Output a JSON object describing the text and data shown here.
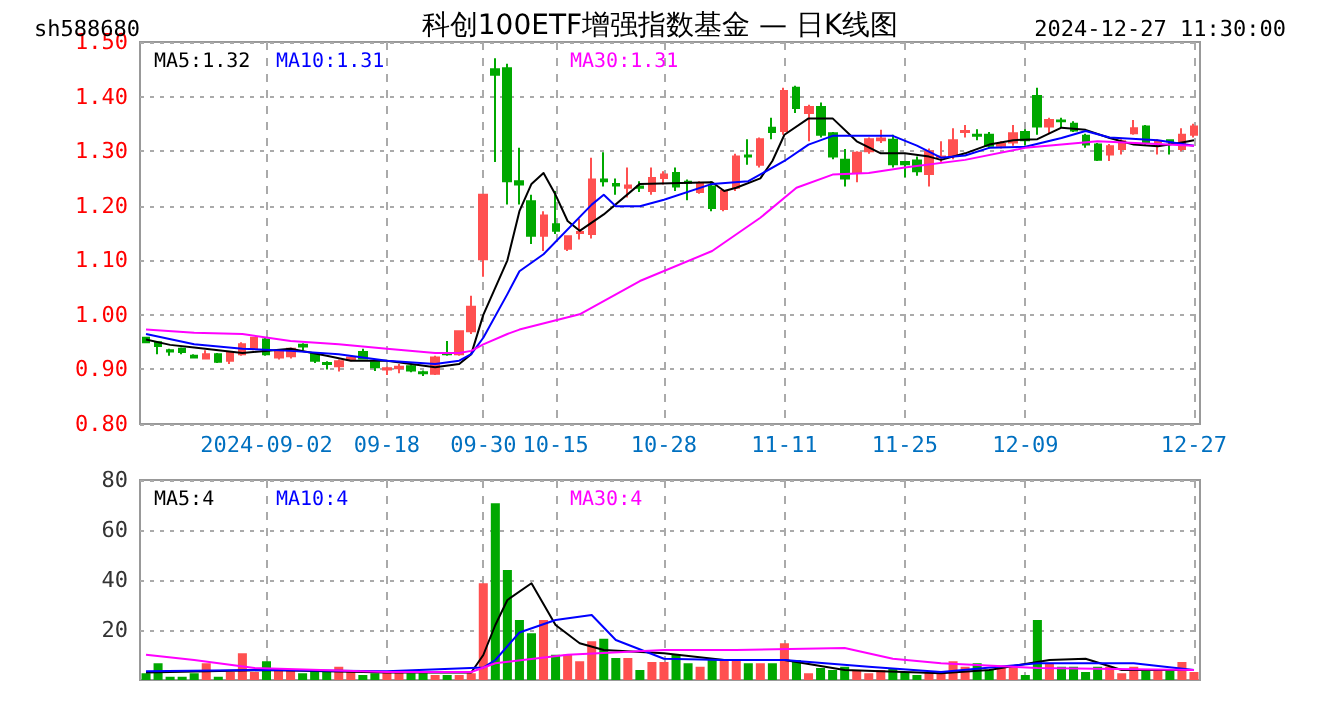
{
  "chart_data": [
    {
      "type": "candlestick",
      "title": "科创100ETF增强指数基金 — 日K线图",
      "annotations": [
        "sh588680",
        "2024-12-27 11:30:00"
      ],
      "categories": [
        null,
        null,
        null,
        null,
        null,
        null,
        null,
        null,
        null,
        null,
        "2024-09-02",
        null,
        null,
        null,
        null,
        null,
        null,
        null,
        null,
        null,
        "09-18",
        null,
        null,
        null,
        null,
        null,
        null,
        null,
        "09-30",
        null,
        null,
        null,
        null,
        null,
        "10-15",
        null,
        null,
        null,
        null,
        null,
        null,
        null,
        null,
        "10-28",
        null,
        null,
        null,
        null,
        null,
        null,
        null,
        null,
        null,
        "11-11",
        null,
        null,
        null,
        null,
        null,
        null,
        null,
        null,
        null,
        "11-25",
        null,
        null,
        null,
        null,
        null,
        null,
        null,
        null,
        null,
        "12-09",
        null,
        null,
        null,
        null,
        null,
        null,
        null,
        null,
        null,
        null,
        null,
        null,
        null,
        "12-27"
      ],
      "ohlc": [
        [
          0.958,
          0.96,
          0.948,
          0.95
        ],
        [
          0.95,
          0.952,
          0.928,
          0.943
        ],
        [
          0.935,
          0.938,
          0.925,
          0.933
        ],
        [
          0.938,
          0.94,
          0.928,
          0.932
        ],
        [
          0.925,
          0.928,
          0.92,
          0.922
        ],
        [
          0.92,
          0.935,
          0.918,
          0.928
        ],
        [
          0.928,
          0.93,
          0.912,
          0.914
        ],
        [
          0.916,
          0.933,
          0.91,
          0.93
        ],
        [
          0.928,
          0.95,
          0.925,
          0.946
        ],
        [
          0.938,
          0.96,
          0.935,
          0.958
        ],
        [
          0.955,
          0.958,
          0.925,
          0.928
        ],
        [
          0.922,
          0.937,
          0.918,
          0.934
        ],
        [
          0.924,
          0.94,
          0.92,
          0.938
        ],
        [
          0.945,
          0.948,
          0.935,
          0.942
        ],
        [
          0.93,
          0.932,
          0.912,
          0.916
        ],
        [
          0.912,
          0.915,
          0.9,
          0.91
        ],
        [
          0.906,
          0.918,
          0.896,
          0.915
        ],
        [
          0.918,
          0.925,
          0.915,
          0.922
        ],
        [
          0.932,
          0.938,
          0.918,
          0.92
        ],
        [
          0.913,
          0.915,
          0.897,
          0.904
        ],
        [
          0.9,
          0.905,
          0.89,
          0.902
        ],
        [
          0.902,
          0.91,
          0.893,
          0.905
        ],
        [
          0.906,
          0.908,
          0.895,
          0.898
        ],
        [
          0.895,
          0.898,
          0.888,
          0.893
        ],
        [
          0.892,
          0.925,
          0.89,
          0.922
        ],
        [
          0.93,
          0.952,
          0.925,
          0.928
        ],
        [
          0.928,
          0.972,
          0.925,
          0.97
        ],
        [
          0.97,
          1.035,
          0.965,
          1.015
        ],
        [
          1.102,
          1.22,
          1.07,
          1.22
        ],
        [
          1.45,
          1.47,
          1.28,
          1.44
        ],
        [
          1.452,
          1.46,
          1.202,
          1.245
        ],
        [
          1.245,
          1.306,
          1.202,
          1.239
        ],
        [
          1.208,
          1.22,
          1.13,
          1.145
        ],
        [
          1.145,
          1.19,
          1.117,
          1.182
        ],
        [
          1.166,
          1.227,
          1.148,
          1.154
        ],
        [
          1.121,
          1.145,
          1.117,
          1.144
        ],
        [
          1.15,
          1.176,
          1.138,
          1.152
        ],
        [
          1.148,
          1.288,
          1.14,
          1.248
        ],
        [
          1.248,
          1.298,
          1.235,
          1.245
        ],
        [
          1.24,
          1.25,
          1.22,
          1.237
        ],
        [
          1.233,
          1.27,
          1.215,
          1.237
        ],
        [
          1.235,
          1.245,
          1.225,
          1.233
        ],
        [
          1.227,
          1.27,
          1.22,
          1.251
        ],
        [
          1.251,
          1.263,
          1.239,
          1.257
        ],
        [
          1.26,
          1.27,
          1.227,
          1.235
        ],
        [
          1.244,
          1.248,
          1.21,
          1.242
        ],
        [
          1.225,
          1.245,
          1.222,
          1.24
        ],
        [
          1.235,
          1.245,
          1.19,
          1.196
        ],
        [
          1.194,
          1.23,
          1.19,
          1.227
        ],
        [
          1.233,
          1.295,
          1.227,
          1.29
        ],
        [
          1.292,
          1.322,
          1.275,
          1.29
        ],
        [
          1.275,
          1.325,
          1.27,
          1.322
        ],
        [
          1.343,
          1.361,
          1.322,
          1.335
        ],
        [
          1.337,
          1.416,
          1.33,
          1.41
        ],
        [
          1.416,
          1.42,
          1.37,
          1.379
        ],
        [
          1.37,
          1.385,
          1.318,
          1.381
        ],
        [
          1.381,
          1.389,
          1.325,
          1.33
        ],
        [
          1.333,
          1.335,
          1.285,
          1.29
        ],
        [
          1.284,
          1.304,
          1.235,
          1.25
        ],
        [
          1.26,
          1.3,
          1.243,
          1.297
        ],
        [
          1.3,
          1.325,
          1.295,
          1.322
        ],
        [
          1.32,
          1.339,
          1.315,
          1.323
        ],
        [
          1.321,
          1.33,
          1.27,
          1.276
        ],
        [
          1.28,
          1.282,
          1.252,
          1.276
        ],
        [
          1.283,
          1.29,
          1.255,
          1.263
        ],
        [
          1.258,
          1.305,
          1.235,
          1.3
        ],
        [
          1.289,
          1.318,
          1.28,
          1.29
        ],
        [
          1.291,
          1.342,
          1.285,
          1.32
        ],
        [
          1.335,
          1.348,
          1.325,
          1.337
        ],
        [
          1.33,
          1.34,
          1.32,
          1.328
        ],
        [
          1.33,
          1.335,
          1.305,
          1.31
        ],
        [
          1.31,
          1.318,
          1.305,
          1.313
        ],
        [
          1.316,
          1.348,
          1.31,
          1.333
        ],
        [
          1.335,
          1.34,
          1.311,
          1.32
        ],
        [
          1.401,
          1.416,
          1.33,
          1.345
        ],
        [
          1.345,
          1.361,
          1.333,
          1.357
        ],
        [
          1.356,
          1.361,
          1.343,
          1.355
        ],
        [
          1.35,
          1.355,
          1.335,
          1.338
        ],
        [
          1.328,
          1.332,
          1.306,
          1.312
        ],
        [
          1.312,
          1.315,
          1.282,
          1.284
        ],
        [
          1.294,
          1.313,
          1.282,
          1.309
        ],
        [
          1.304,
          1.322,
          1.294,
          1.318
        ],
        [
          1.333,
          1.357,
          1.33,
          1.342
        ],
        [
          1.345,
          1.348,
          1.31,
          1.316
        ],
        [
          1.316,
          1.322,
          1.294,
          1.318
        ],
        [
          1.32,
          1.322,
          1.294,
          1.318
        ],
        [
          1.304,
          1.342,
          1.3,
          1.33
        ],
        [
          1.33,
          1.35,
          1.325,
          1.345
        ]
      ],
      "colors": [
        "#00a800",
        "#00a800",
        "#00a800",
        "#00a800",
        "#00a800",
        "#ff5050",
        "#00a800",
        "#ff5050",
        "#ff5050",
        "#ff5050",
        "#00a800",
        "#ff5050",
        "#ff5050",
        "#00a800",
        "#00a800",
        "#00a800",
        "#ff5050",
        "#ff5050",
        "#00a800",
        "#00a800",
        "#ff5050",
        "#ff5050",
        "#00a800",
        "#00a800",
        "#ff5050",
        "#00a800",
        "#ff5050",
        "#ff5050",
        "#ff5050",
        "#00a800",
        "#00a800",
        "#00a800",
        "#00a800",
        "#ff5050",
        "#00a800",
        "#ff5050",
        "#ff5050",
        "#ff5050",
        "#00a800",
        "#00a800",
        "#ff5050",
        "#00a800",
        "#ff5050",
        "#ff5050",
        "#00a800",
        "#00a800",
        "#ff5050",
        "#00a800",
        "#ff5050",
        "#ff5050",
        "#00a800",
        "#ff5050",
        "#00a800",
        "#ff5050",
        "#00a800",
        "#ff5050",
        "#00a800",
        "#00a800",
        "#00a800",
        "#ff5050",
        "#ff5050",
        "#ff5050",
        "#00a800",
        "#00a800",
        "#00a800",
        "#ff5050",
        "#ff5050",
        "#ff5050",
        "#ff5050",
        "#00a800",
        "#00a800",
        "#ff5050",
        "#ff5050",
        "#00a800",
        "#00a800",
        "#ff5050",
        "#00a800",
        "#00a800",
        "#00a800",
        "#00a800",
        "#ff5050",
        "#ff5050",
        "#ff5050",
        "#00a800",
        "#ff5050",
        "#00a800",
        "#ff5050",
        "#ff5050"
      ],
      "series": [
        {
          "type": "line",
          "name": "MA5:1.32",
          "color": "#000000",
          "values": [
            0.955,
            null,
            0.945,
            null,
            0.94,
            null,
            null,
            null,
            0.93,
            null,
            null,
            null,
            0.938,
            null,
            null,
            0.925,
            null,
            0.916,
            null,
            null,
            0.916,
            null,
            null,
            null,
            0.904,
            null,
            0.91,
            0.928,
            1.0,
            null,
            1.1,
            1.19,
            1.24,
            1.26,
            1.22,
            1.172,
            1.154,
            null,
            1.184,
            null,
            null,
            1.24,
            null,
            null,
            null,
            null,
            null,
            1.243,
            1.227,
            1.233,
            null,
            1.25,
            1.282,
            1.33,
            null,
            1.36,
            null,
            1.36,
            null,
            1.318,
            null,
            1.296,
            null,
            1.296,
            null,
            1.29,
            1.284,
            null,
            1.296,
            null,
            1.312,
            null,
            1.32,
            null,
            1.322,
            null,
            1.343,
            null,
            1.339,
            null,
            1.324,
            null,
            1.312,
            null,
            1.309,
            null,
            1.316,
            1.32
          ]
        },
        {
          "type": "line",
          "name": "MA10:1.31",
          "color": "#0000ff",
          "values": [
            0.965,
            null,
            null,
            null,
            0.946,
            null,
            null,
            null,
            0.938,
            null,
            null,
            null,
            0.934,
            null,
            null,
            null,
            0.928,
            null,
            null,
            null,
            0.916,
            null,
            null,
            null,
            0.91,
            null,
            0.916,
            0.928,
            0.958,
            null,
            1.038,
            1.08,
            null,
            1.111,
            null,
            null,
            null,
            1.202,
            1.22,
            1.199,
            null,
            1.199,
            null,
            1.211,
            null,
            null,
            null,
            1.24,
            null,
            null,
            1.245,
            null,
            null,
            1.282,
            null,
            1.312,
            null,
            1.328,
            null,
            null,
            null,
            null,
            1.328,
            null,
            1.31,
            null,
            1.288,
            null,
            1.292,
            null,
            1.306,
            null,
            null,
            1.308,
            null,
            null,
            1.324,
            null,
            1.337,
            null,
            1.325,
            null,
            null,
            null,
            1.32,
            null,
            null,
            1.31
          ]
        },
        {
          "type": "line",
          "name": "MA30:1.31",
          "color": "#ff00ff",
          "values": [
            0.973,
            null,
            null,
            null,
            0.967,
            null,
            null,
            null,
            0.965,
            null,
            null,
            null,
            0.952,
            null,
            null,
            null,
            0.946,
            null,
            null,
            null,
            0.938,
            null,
            null,
            null,
            0.93,
            null,
            0.93,
            0.934,
            0.946,
            null,
            0.965,
            0.973,
            null,
            null,
            null,
            null,
            1.001,
            null,
            null,
            null,
            null,
            1.062,
            null,
            null,
            null,
            null,
            null,
            1.117,
            null,
            null,
            null,
            1.178,
            null,
            null,
            1.233,
            null,
            null,
            1.257,
            null,
            null,
            1.26,
            null,
            null,
            1.27,
            null,
            null,
            null,
            null,
            1.284,
            null,
            null,
            null,
            null,
            1.306,
            null,
            null,
            1.312,
            null,
            null,
            1.318,
            null,
            null,
            null,
            null,
            null,
            null,
            null,
            1.31
          ]
        }
      ],
      "ylim": [
        0.8,
        1.5
      ],
      "yticks": [
        {
          "value": 0.8,
          "label": "0.80"
        },
        {
          "value": 0.9,
          "label": "0.90"
        },
        {
          "value": 1.0,
          "label": "1.00"
        },
        {
          "value": 1.1,
          "label": "1.10"
        },
        {
          "value": 1.2,
          "label": "1.20"
        },
        {
          "value": 1.3,
          "label": "1.30"
        },
        {
          "value": 1.4,
          "label": "1.40"
        },
        {
          "value": 1.5,
          "label": "1.50"
        }
      ],
      "grid": true,
      "legend": "top left",
      "marker": "none"
    },
    {
      "type": "bar",
      "categories": [
        null,
        null,
        null,
        null,
        null,
        null,
        null,
        null,
        null,
        null,
        null,
        null,
        null,
        null,
        null,
        null,
        null,
        null,
        null,
        null,
        null,
        null,
        null,
        null,
        null,
        null,
        null,
        null,
        null,
        null,
        null,
        null,
        null,
        null,
        null,
        null,
        null,
        null,
        null,
        null,
        null,
        null,
        null,
        null,
        null,
        null,
        null,
        null,
        null,
        null,
        null,
        null,
        null,
        null,
        null,
        null,
        null,
        null,
        null,
        null,
        null,
        null,
        null,
        null,
        null,
        null,
        null,
        null,
        null,
        null,
        null,
        null,
        null,
        null,
        null,
        null,
        null,
        null,
        null,
        null,
        null,
        null,
        null,
        null,
        null,
        null,
        null,
        null
      ],
      "series": [
        {
          "type": "bar",
          "values": [
            2.7,
            6.7,
            1.3,
            1.3,
            2.7,
            6.7,
            1.3,
            3.2,
            10.7,
            3.2,
            7.5,
            4,
            4,
            2.7,
            4,
            4,
            5.3,
            4,
            2,
            2.7,
            3.2,
            3.2,
            2.7,
            2.7,
            2,
            2,
            2,
            2.7,
            38.7,
            70.7,
            44,
            24,
            18.7,
            24,
            10.1,
            10.1,
            7.5,
            15.5,
            16.5,
            8.8,
            8.8,
            4,
            7.2,
            7.2,
            10.1,
            6.7,
            5.3,
            8,
            8,
            8,
            6.7,
            6.7,
            6.7,
            14.7,
            8,
            2.7,
            4.8,
            4,
            5.3,
            4,
            2.7,
            4,
            4.8,
            3.2,
            2,
            3.2,
            3.2,
            7.5,
            5.3,
            6.7,
            4,
            5.3,
            5.3,
            2,
            24,
            6.7,
            5.3,
            5.3,
            3.2,
            5.3,
            5.3,
            2.7,
            5.3,
            4,
            4,
            4,
            7.2,
            3.2
          ],
          "colors": [
            "#00a800",
            "#00a800",
            "#00a800",
            "#00a800",
            "#00a800",
            "#ff5050",
            "#00a800",
            "#ff5050",
            "#ff5050",
            "#ff5050",
            "#00a800",
            "#ff5050",
            "#ff5050",
            "#00a800",
            "#00a800",
            "#00a800",
            "#ff5050",
            "#ff5050",
            "#00a800",
            "#00a800",
            "#ff5050",
            "#ff5050",
            "#00a800",
            "#00a800",
            "#ff5050",
            "#00a800",
            "#ff5050",
            "#ff5050",
            "#ff5050",
            "#00a800",
            "#00a800",
            "#00a800",
            "#00a800",
            "#ff5050",
            "#00a800",
            "#ff5050",
            "#ff5050",
            "#ff5050",
            "#00a800",
            "#00a800",
            "#ff5050",
            "#00a800",
            "#ff5050",
            "#ff5050",
            "#00a800",
            "#00a800",
            "#ff5050",
            "#00a800",
            "#ff5050",
            "#ff5050",
            "#00a800",
            "#ff5050",
            "#00a800",
            "#ff5050",
            "#00a800",
            "#ff5050",
            "#00a800",
            "#00a800",
            "#00a800",
            "#ff5050",
            "#ff5050",
            "#ff5050",
            "#00a800",
            "#00a800",
            "#00a800",
            "#ff5050",
            "#ff5050",
            "#ff5050",
            "#ff5050",
            "#00a800",
            "#00a800",
            "#ff5050",
            "#ff5050",
            "#00a800",
            "#00a800",
            "#ff5050",
            "#00a800",
            "#00a800",
            "#00a800",
            "#00a800",
            "#ff5050",
            "#ff5050",
            "#ff5050",
            "#00a800",
            "#ff5050",
            "#00a800",
            "#ff5050",
            "#ff5050"
          ]
        },
        {
          "type": "line",
          "name": "MA5:4",
          "color": "#000000",
          "values": [
            3,
            null,
            null,
            null,
            null,
            null,
            null,
            null,
            null,
            null,
            4,
            null,
            null,
            null,
            null,
            null,
            null,
            null,
            null,
            null,
            3,
            null,
            null,
            null,
            null,
            null,
            null,
            3,
            10,
            22,
            32,
            null,
            38.7,
            null,
            22,
            null,
            14.7,
            null,
            12,
            null,
            null,
            null,
            null,
            10.7,
            null,
            null,
            null,
            null,
            8,
            null,
            null,
            null,
            null,
            8,
            null,
            null,
            null,
            null,
            4,
            null,
            null,
            null,
            null,
            null,
            null,
            null,
            2.7,
            null,
            null,
            null,
            4,
            null,
            null,
            null,
            null,
            8,
            null,
            null,
            8.5,
            null,
            null,
            4,
            null,
            null,
            null,
            null,
            null,
            4
          ]
        },
        {
          "type": "line",
          "name": "MA10:4",
          "color": "#0000ff",
          "values": [
            3.5,
            null,
            null,
            null,
            null,
            null,
            null,
            null,
            null,
            null,
            4,
            null,
            null,
            null,
            null,
            null,
            null,
            null,
            null,
            null,
            3.5,
            null,
            null,
            null,
            null,
            null,
            null,
            null,
            5,
            8,
            null,
            19,
            null,
            null,
            24,
            null,
            null,
            26,
            null,
            16,
            null,
            null,
            null,
            8.5,
            null,
            null,
            null,
            null,
            8,
            null,
            null,
            null,
            null,
            8,
            null,
            null,
            null,
            null,
            null,
            null,
            5.3,
            null,
            null,
            null,
            null,
            null,
            3.2,
            null,
            null,
            null,
            null,
            null,
            null,
            null,
            6.7,
            null,
            null,
            null,
            null,
            null,
            null,
            null,
            6.7,
            null,
            null,
            null,
            null,
            4
          ]
        },
        {
          "type": "line",
          "name": "MA30:4",
          "color": "#ff00ff",
          "values": [
            10.1,
            null,
            null,
            null,
            8,
            null,
            null,
            null,
            null,
            4.8,
            null,
            null,
            null,
            null,
            null,
            null,
            null,
            null,
            null,
            null,
            3.2,
            null,
            null,
            null,
            null,
            null,
            null,
            3.2,
            null,
            6.7,
            null,
            null,
            null,
            null,
            null,
            10.1,
            null,
            null,
            null,
            null,
            null,
            null,
            null,
            12,
            null,
            null,
            null,
            null,
            null,
            12,
            null,
            null,
            null,
            null,
            null,
            null,
            null,
            null,
            12.8,
            null,
            null,
            null,
            8.5,
            null,
            null,
            null,
            6.7,
            null,
            null,
            null,
            null,
            null,
            null,
            null,
            4.8,
            null,
            null,
            null,
            null,
            null,
            null,
            null,
            null,
            null,
            null,
            null,
            null,
            4
          ]
        }
      ],
      "ylim": [
        0,
        80
      ],
      "yticks": [
        20,
        40,
        60,
        80
      ],
      "grid": true,
      "legend": "top left",
      "marker": "none",
      "tick_labels": "y"
    }
  ]
}
